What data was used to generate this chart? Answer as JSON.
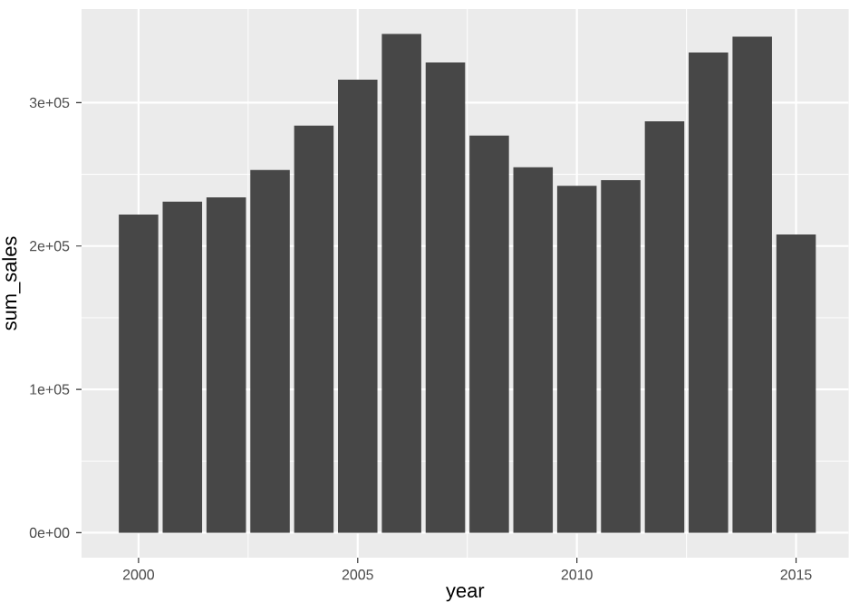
{
  "chart_data": {
    "type": "bar",
    "xlabel": "year",
    "ylabel": "sum_sales",
    "x": [
      2000,
      2001,
      2002,
      2003,
      2004,
      2005,
      2006,
      2007,
      2008,
      2009,
      2010,
      2011,
      2012,
      2013,
      2014,
      2015
    ],
    "values": [
      222000,
      231000,
      234000,
      253000,
      284000,
      316000,
      348000,
      328000,
      277000,
      255000,
      242000,
      246000,
      287000,
      335000,
      346000,
      208000
    ],
    "color": "#474747",
    "xlim": [
      1998.7,
      2016.2
    ],
    "xticks": [
      2000,
      2005,
      2010,
      2015
    ],
    "ylim": [
      -17400,
      365300
    ],
    "yticks": [
      {
        "value": 0,
        "label": "0e+00"
      },
      {
        "value": 100000,
        "label": "1e+05"
      },
      {
        "value": 200000,
        "label": "2e+05"
      },
      {
        "value": 300000,
        "label": "3e+05"
      }
    ],
    "grid": true
  }
}
